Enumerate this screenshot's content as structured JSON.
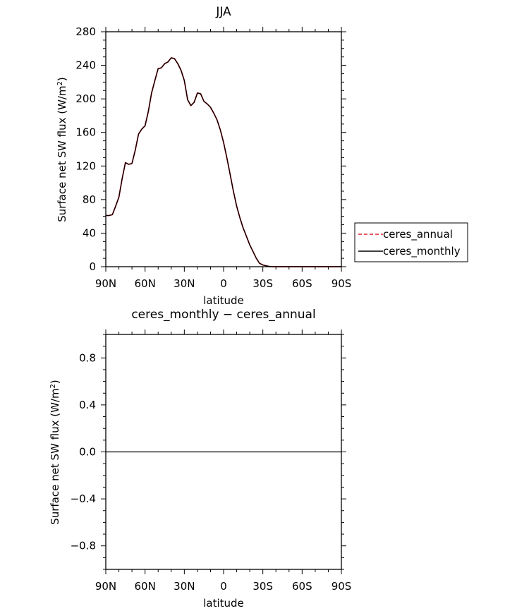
{
  "chart_data": [
    {
      "type": "line",
      "title": "JJA",
      "xlabel": "latitude",
      "ylabel_main": "Surface net SW flux (W/m",
      "ylabel_sup": "2",
      "ylabel_end": ")",
      "xlim": [
        90,
        -90
      ],
      "ylim": [
        0,
        280
      ],
      "xticks": [
        90,
        60,
        30,
        0,
        -30,
        -60,
        -90
      ],
      "xticklabels": [
        "90N",
        "60N",
        "30N",
        "0",
        "30S",
        "60S",
        "90S"
      ],
      "yticks": [
        0,
        40,
        80,
        120,
        160,
        200,
        240,
        280
      ],
      "yticklabels": [
        "0",
        "40",
        "80",
        "120",
        "160",
        "200",
        "240",
        "280"
      ],
      "legend": {
        "position": "right",
        "entries": [
          {
            "name": "ceres_annual",
            "color": "#e0202a",
            "dash": "dashed"
          },
          {
            "name": "ceres_monthly",
            "color": "#000000",
            "dash": "solid"
          }
        ]
      },
      "series": [
        {
          "name": "ceres_annual",
          "color": "#e0202a",
          "x": [
            90,
            87.5,
            85,
            82.5,
            80,
            77.5,
            75,
            72.5,
            70,
            67.5,
            65,
            62.5,
            60,
            57.5,
            55,
            52.5,
            50,
            47.5,
            45,
            42.5,
            40,
            37.5,
            35,
            32.5,
            30,
            27.5,
            25,
            22.5,
            20,
            17.5,
            15,
            12.5,
            10,
            7.5,
            5,
            2.5,
            0,
            -2.5,
            -5,
            -7.5,
            -10,
            -12.5,
            -15,
            -17.5,
            -20,
            -22.5,
            -25,
            -27.5,
            -30,
            -32.5,
            -35,
            -37.5,
            -40,
            -42.5,
            -45,
            -47.5,
            -50,
            -52.5,
            -55,
            -57.5,
            -60,
            -62.5,
            -65,
            -67.5,
            -70,
            -72.5,
            -75,
            -77.5,
            -80,
            -82.5,
            -85,
            -87.5,
            -90
          ],
          "y": [
            61,
            61,
            62,
            72,
            83,
            105,
            124,
            122,
            123,
            139,
            158,
            164,
            168,
            185,
            207,
            222,
            236,
            237,
            242,
            244,
            249,
            248,
            242,
            234,
            222,
            199,
            192,
            196,
            207,
            206,
            197,
            194,
            190,
            183,
            175,
            163,
            148,
            130,
            110,
            90,
            72,
            58,
            46,
            36,
            26,
            18,
            10,
            4,
            2,
            1,
            0.3,
            0,
            0,
            0,
            0,
            0,
            0,
            0,
            0,
            0,
            0,
            0,
            0,
            0,
            0,
            0,
            0,
            0,
            0,
            0,
            0,
            0,
            0
          ]
        },
        {
          "name": "ceres_monthly",
          "color": "#000000",
          "x": [
            90,
            87.5,
            85,
            82.5,
            80,
            77.5,
            75,
            72.5,
            70,
            67.5,
            65,
            62.5,
            60,
            57.5,
            55,
            52.5,
            50,
            47.5,
            45,
            42.5,
            40,
            37.5,
            35,
            32.5,
            30,
            27.5,
            25,
            22.5,
            20,
            17.5,
            15,
            12.5,
            10,
            7.5,
            5,
            2.5,
            0,
            -2.5,
            -5,
            -7.5,
            -10,
            -12.5,
            -15,
            -17.5,
            -20,
            -22.5,
            -25,
            -27.5,
            -30,
            -32.5,
            -35,
            -37.5,
            -40,
            -42.5,
            -45,
            -47.5,
            -50,
            -52.5,
            -55,
            -57.5,
            -60,
            -62.5,
            -65,
            -67.5,
            -70,
            -72.5,
            -75,
            -77.5,
            -80,
            -82.5,
            -85,
            -87.5,
            -90
          ],
          "y": [
            61,
            61,
            62,
            72,
            83,
            105,
            124,
            122,
            123,
            139,
            158,
            164,
            168,
            185,
            207,
            222,
            236,
            237,
            242,
            244,
            249,
            248,
            242,
            234,
            222,
            199,
            192,
            196,
            207,
            206,
            197,
            194,
            190,
            183,
            175,
            163,
            148,
            130,
            110,
            90,
            72,
            58,
            46,
            36,
            26,
            18,
            10,
            4,
            2,
            1,
            0.3,
            0,
            0,
            0,
            0,
            0,
            0,
            0,
            0,
            0,
            0,
            0,
            0,
            0,
            0,
            0,
            0,
            0,
            0,
            0,
            0,
            0,
            0
          ]
        }
      ]
    },
    {
      "type": "line",
      "title": "ceres_monthly − ceres_annual",
      "xlabel": "latitude",
      "ylabel_main": "Surface net SW flux (W/m",
      "ylabel_sup": "2",
      "ylabel_end": ")",
      "xlim": [
        90,
        -90
      ],
      "ylim": [
        -1,
        1
      ],
      "xticks": [
        90,
        60,
        30,
        0,
        -30,
        -60,
        -90
      ],
      "xticklabels": [
        "90N",
        "60N",
        "30N",
        "0",
        "30S",
        "60S",
        "90S"
      ],
      "yticks": [
        -0.8,
        -0.4,
        0.0,
        0.4,
        0.8
      ],
      "yticklabels": [
        "−0.8",
        "−0.4",
        "0.0",
        "0.4",
        "0.8"
      ],
      "series": [
        {
          "color": "#000000",
          "x": [
            90,
            -90
          ],
          "y": [
            0,
            0
          ]
        }
      ]
    }
  ]
}
